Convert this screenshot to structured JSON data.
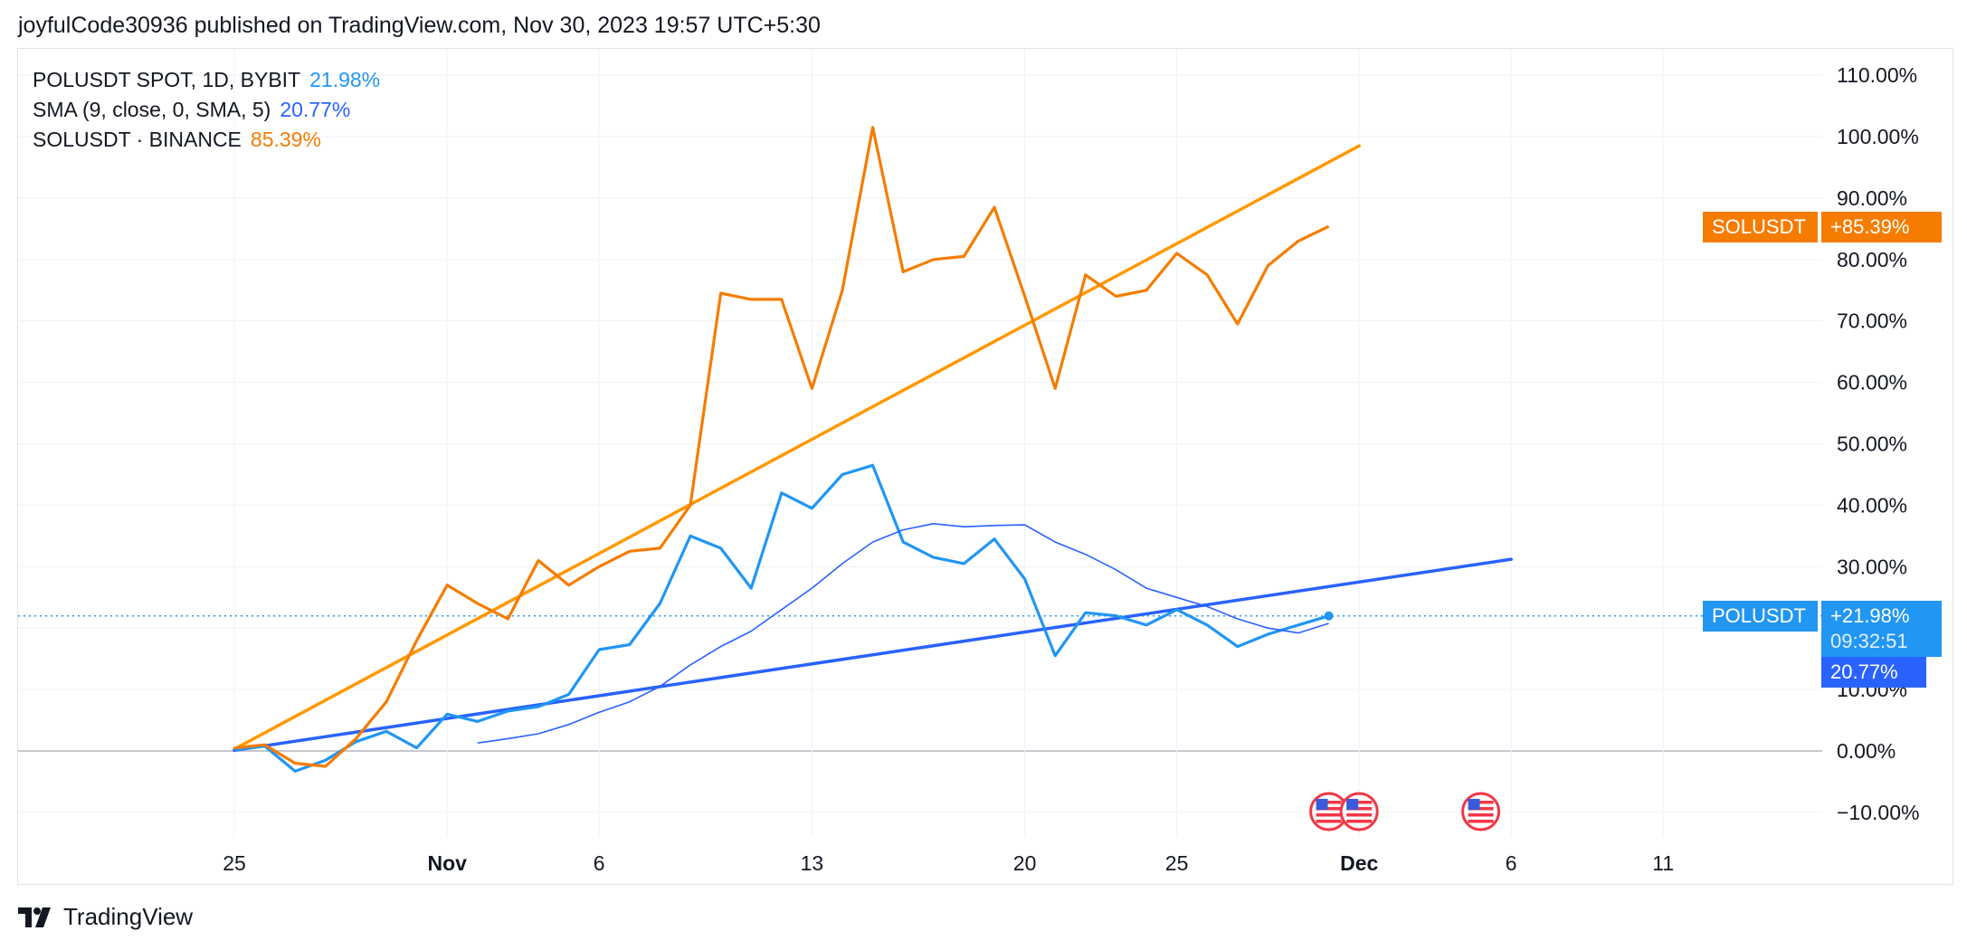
{
  "header": {
    "attribution": "joyfulCode30936 published on TradingView.com, Nov 30, 2023 19:57 UTC+5:30"
  },
  "legend": [
    {
      "label": "POLUSDT SPOT, 1D, BYBIT",
      "value": "21.98%",
      "color": "#2196f3"
    },
    {
      "label": "SMA (9, close, 0, SMA, 5)",
      "value": "20.77%",
      "color": "#2962ff"
    },
    {
      "label": "SOLUSDT · BINANCE",
      "value": "85.39%",
      "color": "#f57c00"
    }
  ],
  "price_tags": {
    "solusdt_name": "SOLUSDT",
    "solusdt_value": "+85.39%",
    "polusdt_name": "POLUSDT",
    "polusdt_value": "+21.98%",
    "polusdt_countdown": "09:32:51",
    "sma_value": "20.77%"
  },
  "footer": {
    "brand": "TradingView"
  },
  "colors": {
    "polusdt": "#2196f3",
    "sma": "#2962ff",
    "solusdt": "#f57c00",
    "sol_trend": "#ff9800",
    "pol_trend": "#2962ff",
    "grid": "#f0f3fa",
    "zero_line": "#b2b5be"
  },
  "chart_data": {
    "type": "line",
    "y_axis": {
      "unit": "%",
      "range": [
        -15,
        112
      ],
      "ticks": [
        110,
        100,
        90,
        80,
        70,
        60,
        50,
        40,
        30,
        20,
        10,
        0,
        -10
      ],
      "tick_labels": [
        "110.00%",
        "100.00%",
        "90.00%",
        "80.00%",
        "70.00%",
        "60.00%",
        "50.00%",
        "40.00%",
        "30.00%",
        "20.00%",
        "10.00%",
        "0.00%",
        "−10.00%"
      ]
    },
    "x_axis": {
      "range": [
        "2023-10-25",
        "2023-12-16"
      ],
      "ticks": [
        {
          "date": "2023-10-25",
          "label": "25",
          "bold": false
        },
        {
          "date": "2023-11-01",
          "label": "Nov",
          "bold": true
        },
        {
          "date": "2023-11-06",
          "label": "6",
          "bold": false
        },
        {
          "date": "2023-11-13",
          "label": "13",
          "bold": false
        },
        {
          "date": "2023-11-20",
          "label": "20",
          "bold": false
        },
        {
          "date": "2023-11-25",
          "label": "25",
          "bold": false
        },
        {
          "date": "2023-12-01",
          "label": "Dec",
          "bold": true
        },
        {
          "date": "2023-12-06",
          "label": "6",
          "bold": false
        },
        {
          "date": "2023-12-11",
          "label": "11",
          "bold": false
        }
      ]
    },
    "grid": true,
    "legend_position": "top-left",
    "series": [
      {
        "name": "POLUSDT",
        "key": "polusdt",
        "dates": [
          "2023-10-25",
          "2023-10-26",
          "2023-10-27",
          "2023-10-28",
          "2023-10-29",
          "2023-10-30",
          "2023-10-31",
          "2023-11-01",
          "2023-11-02",
          "2023-11-03",
          "2023-11-04",
          "2023-11-05",
          "2023-11-06",
          "2023-11-07",
          "2023-11-08",
          "2023-11-09",
          "2023-11-10",
          "2023-11-11",
          "2023-11-12",
          "2023-11-13",
          "2023-11-14",
          "2023-11-15",
          "2023-11-16",
          "2023-11-17",
          "2023-11-18",
          "2023-11-19",
          "2023-11-20",
          "2023-11-21",
          "2023-11-22",
          "2023-11-23",
          "2023-11-24",
          "2023-11-25",
          "2023-11-26",
          "2023-11-27",
          "2023-11-28",
          "2023-11-29",
          "2023-11-30"
        ],
        "values": [
          0.2,
          0.8,
          -3.3,
          -1.5,
          1.5,
          3.2,
          0.5,
          6.0,
          4.8,
          6.5,
          7.2,
          9.2,
          16.5,
          17.3,
          24.0,
          35.0,
          33.0,
          26.5,
          42.0,
          39.5,
          45.0,
          46.5,
          34.0,
          31.5,
          30.5,
          34.5,
          28.0,
          15.5,
          22.5,
          22.0,
          20.5,
          23.0,
          20.5,
          17.0,
          19.0,
          20.5,
          21.98
        ]
      },
      {
        "name": "SMA (9, close, 0, SMA, 5)",
        "key": "sma",
        "dates": [
          "2023-11-02",
          "2023-11-03",
          "2023-11-04",
          "2023-11-05",
          "2023-11-06",
          "2023-11-07",
          "2023-11-08",
          "2023-11-09",
          "2023-11-10",
          "2023-11-11",
          "2023-11-12",
          "2023-11-13",
          "2023-11-14",
          "2023-11-15",
          "2023-11-16",
          "2023-11-17",
          "2023-11-18",
          "2023-11-19",
          "2023-11-20",
          "2023-11-21",
          "2023-11-22",
          "2023-11-23",
          "2023-11-24",
          "2023-11-25",
          "2023-11-26",
          "2023-11-27",
          "2023-11-28",
          "2023-11-29",
          "2023-11-30"
        ],
        "values": [
          1.3,
          2.0,
          2.8,
          4.3,
          6.3,
          8.0,
          10.5,
          14.0,
          17.0,
          19.5,
          23.0,
          26.5,
          30.5,
          34.0,
          36.0,
          37.0,
          36.5,
          36.7,
          36.8,
          34.0,
          32.0,
          29.5,
          26.5,
          25.0,
          23.5,
          21.5,
          20.0,
          19.2,
          20.77
        ]
      },
      {
        "name": "SOLUSDT · BINANCE",
        "key": "solusdt",
        "dates": [
          "2023-10-25",
          "2023-10-26",
          "2023-10-27",
          "2023-10-28",
          "2023-10-29",
          "2023-10-30",
          "2023-10-31",
          "2023-11-01",
          "2023-11-02",
          "2023-11-03",
          "2023-11-04",
          "2023-11-05",
          "2023-11-06",
          "2023-11-07",
          "2023-11-08",
          "2023-11-09",
          "2023-11-10",
          "2023-11-11",
          "2023-11-12",
          "2023-11-13",
          "2023-11-14",
          "2023-11-15",
          "2023-11-16",
          "2023-11-17",
          "2023-11-18",
          "2023-11-19",
          "2023-11-20",
          "2023-11-21",
          "2023-11-22",
          "2023-11-23",
          "2023-11-24",
          "2023-11-25",
          "2023-11-26",
          "2023-11-27",
          "2023-11-28",
          "2023-11-29",
          "2023-11-30"
        ],
        "values": [
          0.5,
          1.0,
          -2.0,
          -2.5,
          2.0,
          8.0,
          18.0,
          27.0,
          24.0,
          21.5,
          31.0,
          27.0,
          30.0,
          32.5,
          33.0,
          40.0,
          74.5,
          73.5,
          73.5,
          59.0,
          75.0,
          101.5,
          78.0,
          80.0,
          80.5,
          88.5,
          74.0,
          59.0,
          77.5,
          74.0,
          75.0,
          81.0,
          77.5,
          69.5,
          79.0,
          83.0,
          85.39
        ]
      }
    ],
    "trend_lines": [
      {
        "key": "sol_trend",
        "from": {
          "date": "2023-10-25",
          "value": 0.3
        },
        "to": {
          "date": "2023-12-01",
          "value": 98.5
        }
      },
      {
        "key": "pol_trend",
        "from": {
          "date": "2023-10-25",
          "value": 0.1
        },
        "to": {
          "date": "2023-12-06",
          "value": 31.2
        }
      }
    ],
    "price_line": {
      "value": 21.98
    },
    "event_markers": [
      {
        "date": "2023-11-30",
        "icon": "us-flag-icon"
      },
      {
        "date": "2023-12-01",
        "icon": "us-flag-icon"
      },
      {
        "date": "2023-12-05",
        "icon": "us-flag-icon"
      }
    ]
  }
}
